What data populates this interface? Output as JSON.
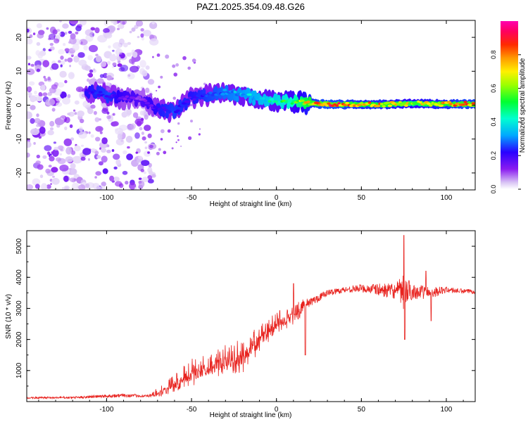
{
  "figure_title": "PAZ1.2025.354.09.48.G26",
  "chart_data": [
    {
      "type": "heatmap",
      "title": "PAZ1.2025.354.09.48.G26",
      "xlabel": "Height of straight line (km)",
      "ylabel": "Frequency (Hz)",
      "xlim": [
        -147,
        117
      ],
      "ylim": [
        -25,
        25
      ],
      "xticks": [
        -100,
        -50,
        0,
        50,
        100
      ],
      "yticks": [
        -20,
        -10,
        0,
        10,
        20
      ],
      "colorbar": {
        "label": "Normalized spectral amplitude",
        "range": [
          0.0,
          1.0
        ],
        "ticks": [
          "0.0",
          "0.2",
          "0.4",
          "0.6",
          "0.8"
        ],
        "colormap": [
          "#e8d9f5",
          "#8a1cf0",
          "#2a00ff",
          "#00c8ff",
          "#00ff50",
          "#e8ff00",
          "#ff7a00",
          "#ff0040",
          "#ff00a0"
        ]
      },
      "ridge": {
        "description_points_x": [
          -110,
          -100,
          -90,
          -80,
          -70,
          -60,
          -50,
          -40,
          -30,
          -20,
          -10,
          0,
          10,
          20,
          30,
          40,
          50,
          60,
          70,
          80,
          90,
          100,
          110
        ],
        "center_freq": [
          4,
          3,
          2,
          2,
          -1,
          -2,
          2,
          3,
          4,
          3,
          2,
          1,
          1,
          0.5,
          0.3,
          0.2,
          0.2,
          0.2,
          0.3,
          0.5,
          0.4,
          0.3,
          0.3
        ],
        "peak_amplitude": [
          0.2,
          0.25,
          0.15,
          0.1,
          0.2,
          0.25,
          0.2,
          0.25,
          0.3,
          0.35,
          0.4,
          0.45,
          0.55,
          0.75,
          0.85,
          0.8,
          0.75,
          0.75,
          0.7,
          0.65,
          0.7,
          0.75,
          0.8
        ]
      },
      "noise_region_x": [
        -147,
        -72
      ]
    },
    {
      "type": "line",
      "xlabel": "Height of straight line (km)",
      "ylabel": "SNR (10 * v/v)",
      "xlim": [
        -147,
        117
      ],
      "ylim": [
        0,
        5500
      ],
      "xticks": [
        -100,
        -50,
        0,
        50,
        100
      ],
      "yticks": [
        1000,
        2000,
        3000,
        4000,
        5000
      ],
      "series_color": "#e8231f",
      "envelope": {
        "x": [
          -147,
          -120,
          -90,
          -75,
          -70,
          -60,
          -50,
          -40,
          -30,
          -20,
          -10,
          0,
          10,
          20,
          30,
          40,
          50,
          60,
          70,
          75,
          80,
          90,
          100,
          110,
          117
        ],
        "mean": [
          120,
          130,
          200,
          180,
          250,
          500,
          800,
          1000,
          1200,
          1300,
          1900,
          2400,
          2700,
          3200,
          3500,
          3600,
          3650,
          3600,
          3550,
          3500,
          3550,
          3500,
          3600,
          3550,
          3550
        ],
        "spread": [
          60,
          70,
          120,
          80,
          300,
          600,
          900,
          1000,
          1000,
          1100,
          900,
          800,
          700,
          300,
          200,
          200,
          250,
          400,
          500,
          1200,
          500,
          400,
          200,
          150,
          150
        ]
      },
      "spikes": [
        {
          "x": 75,
          "y": 5350
        },
        {
          "x": 75.5,
          "y": 2000
        },
        {
          "x": 88,
          "y": 4200
        },
        {
          "x": 91,
          "y": 2600
        },
        {
          "x": 10,
          "y": 3800
        },
        {
          "x": 17,
          "y": 1500
        }
      ]
    }
  ]
}
